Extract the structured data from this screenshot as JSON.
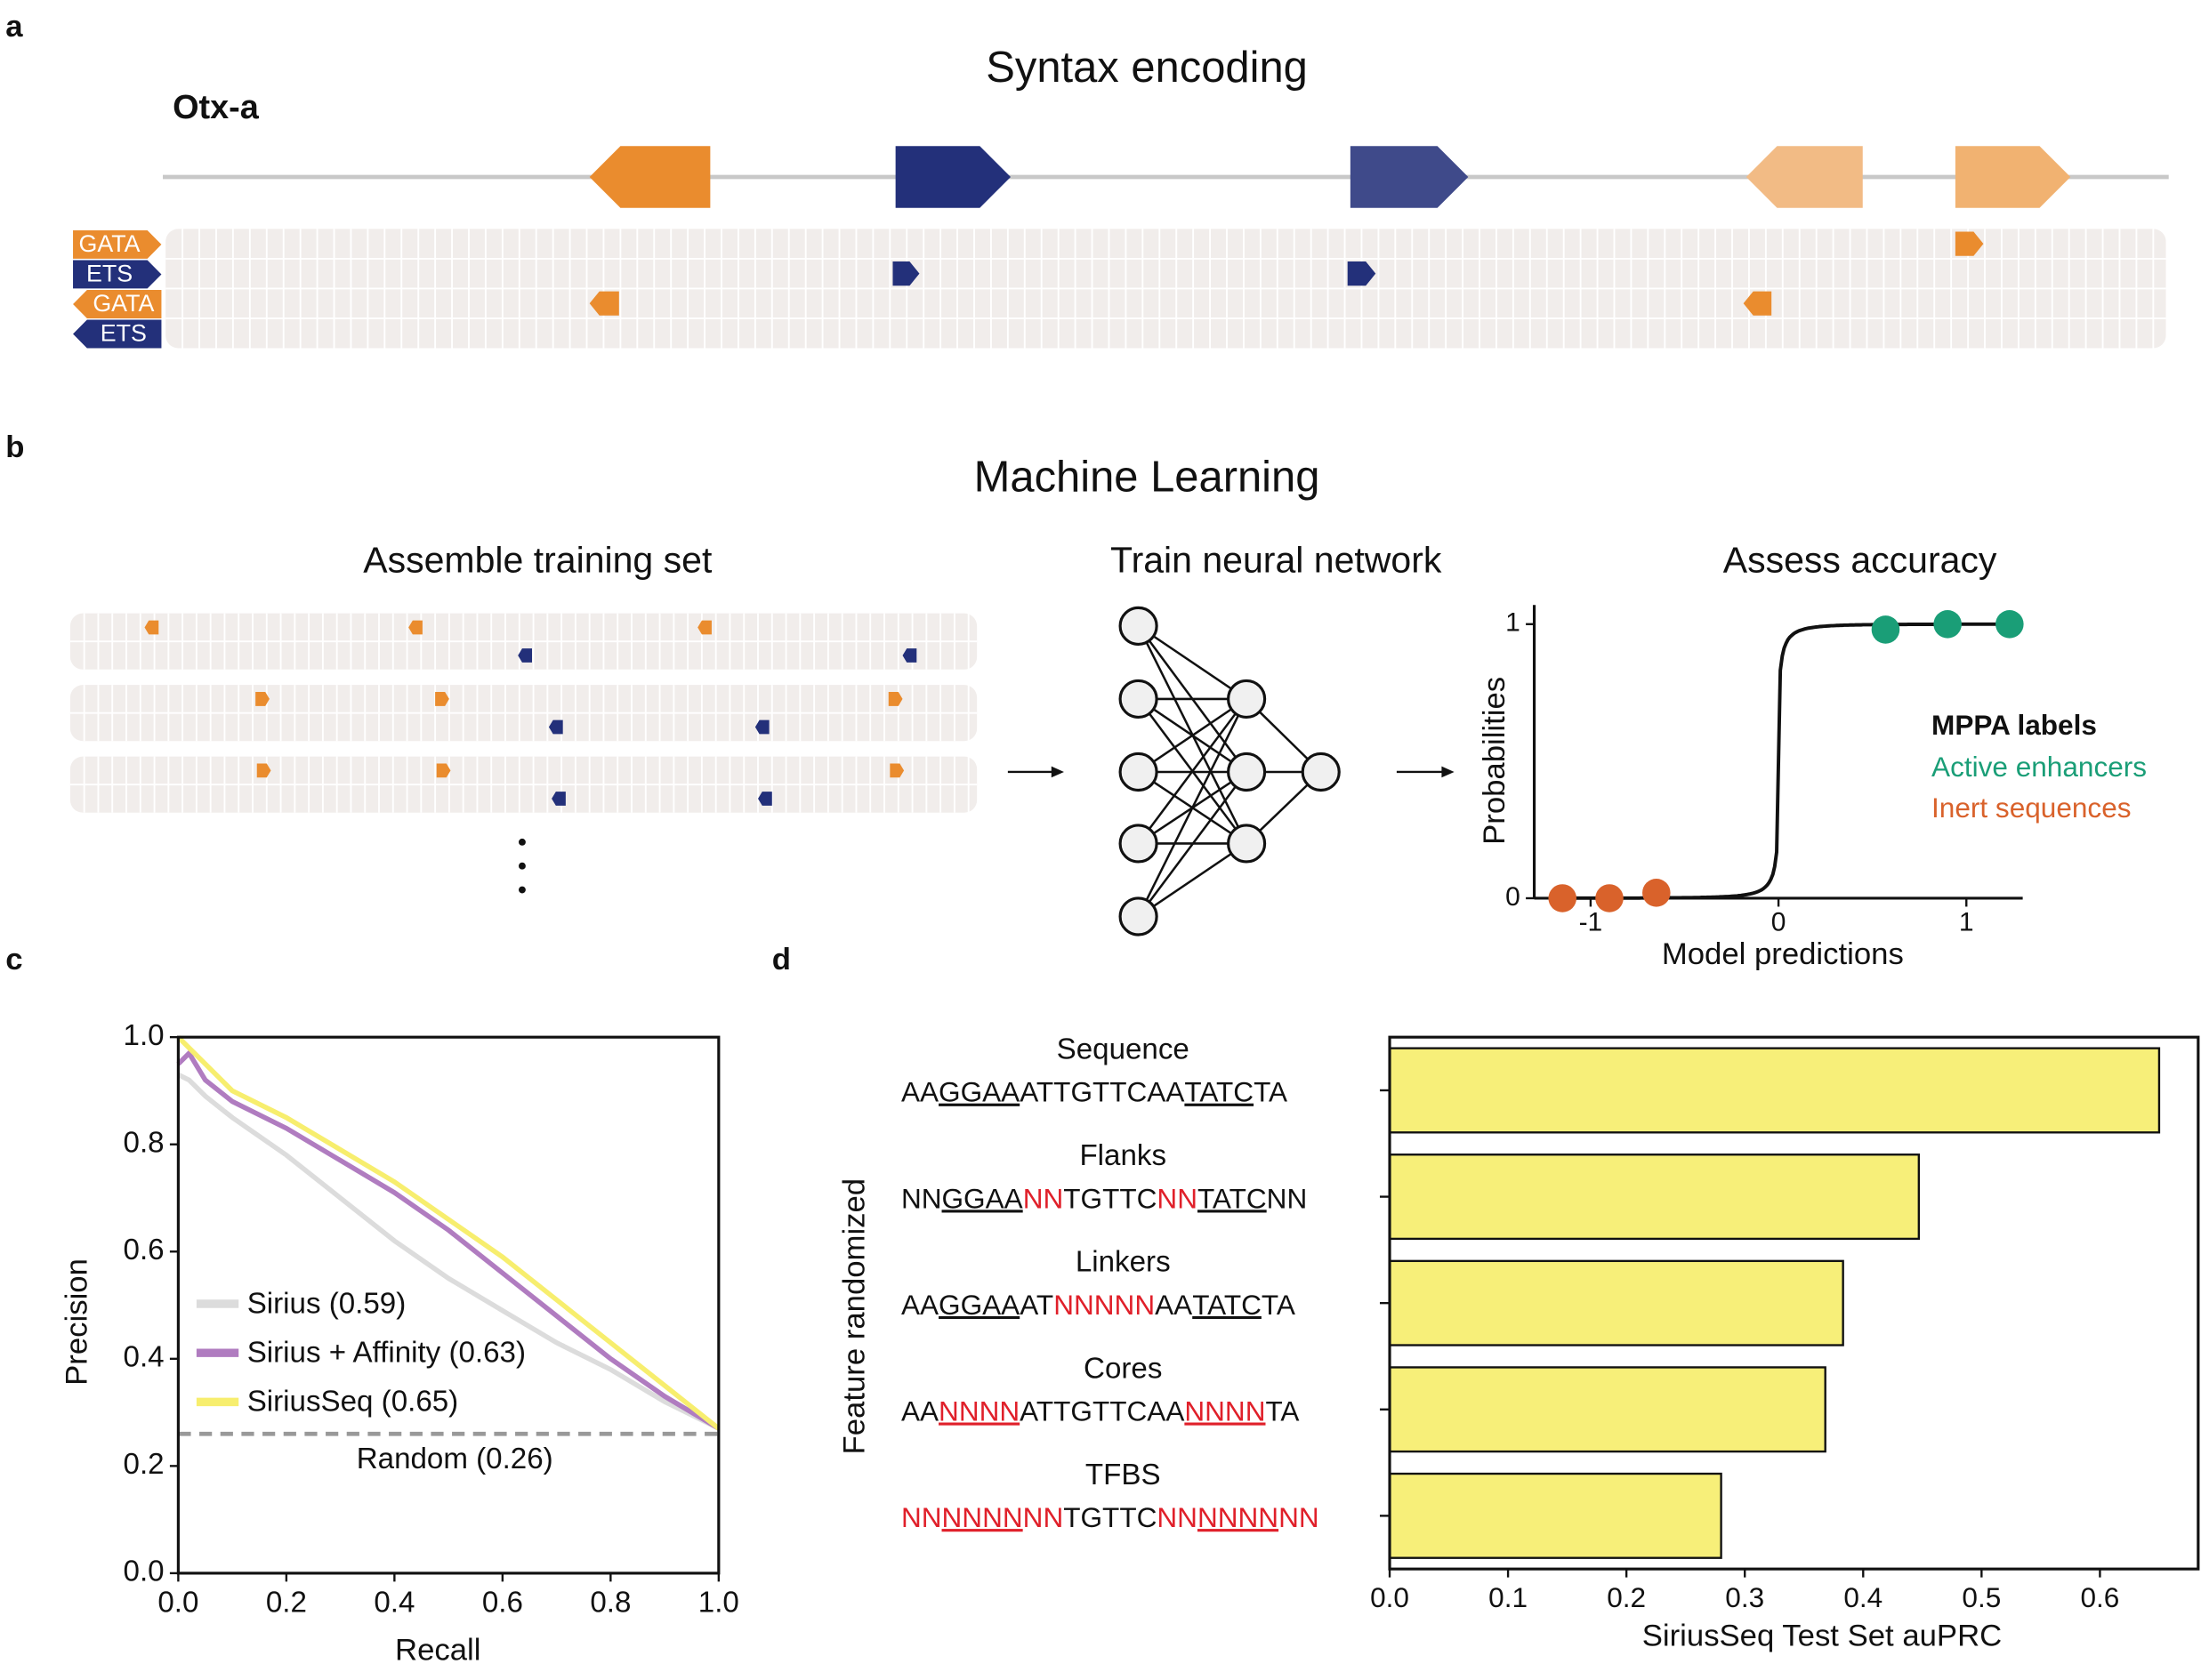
{
  "panel_labels": [
    "a",
    "b",
    "c",
    "d"
  ],
  "panel_a": {
    "title": "Syntax encoding",
    "enhancer": "Otx-a",
    "rows": [
      "GATA",
      "ETS",
      "GATA",
      "ETS"
    ]
  },
  "panel_b": {
    "title": "Machine Learning",
    "steps": [
      "Assemble training set",
      "Train neural network",
      "Assess accuracy"
    ]
  },
  "chart_data": [
    {
      "type": "scatter",
      "xlabel": "Model predictions",
      "ylabel": "Probabilities",
      "xlim": [
        -1.3,
        1.3
      ],
      "ylim": [
        0,
        1.07
      ],
      "xticks": [
        -1,
        0,
        1
      ],
      "yticks": [
        0,
        1
      ],
      "legend_title": "MPPA labels",
      "series": [
        {
          "name": "Active enhancers",
          "color": "#1a9e77",
          "x": [
            0.57,
            0.9,
            1.23
          ],
          "values": [
            0.98,
            1,
            1
          ]
        },
        {
          "name": "Inert sequences",
          "color": "#d9622b",
          "x": [
            -1.15,
            -0.9,
            -0.65
          ],
          "values": [
            0,
            0,
            0.02
          ]
        }
      ]
    },
    {
      "type": "line",
      "xlabel": "Recall",
      "ylabel": "Precision",
      "x": [
        0,
        0.02,
        0.05,
        0.1,
        0.2,
        0.3,
        0.4,
        0.5,
        0.6,
        0.7,
        0.8,
        0.9,
        1.0
      ],
      "xlim": [
        0,
        1
      ],
      "ylim": [
        0,
        1
      ],
      "xticks": [
        {
          "value": 0,
          "label": "0.0"
        },
        0.2,
        0.4,
        0.6,
        0.8,
        {
          "value": 1,
          "label": "1.0"
        }
      ],
      "yticks": [
        {
          "value": 0,
          "label": "0.0"
        },
        0.2,
        0.4,
        0.6,
        0.8,
        {
          "value": 1,
          "label": "1.0"
        }
      ],
      "series": [
        {
          "name": "Sirius (0.59)",
          "color": "#dcdcdc",
          "values": [
            0.93,
            0.92,
            0.89,
            0.85,
            0.78,
            0.7,
            0.62,
            0.55,
            0.49,
            0.43,
            0.38,
            0.32,
            0.27
          ]
        },
        {
          "name": "Sirius + Affinity (0.63)",
          "color": "#b07cc0",
          "values": [
            0.95,
            0.97,
            0.92,
            0.88,
            0.83,
            0.77,
            0.71,
            0.64,
            0.56,
            0.48,
            0.4,
            0.33,
            0.27
          ]
        },
        {
          "name": "SiriusSeq (0.65)",
          "color": "#f7ee6e",
          "values": [
            1.0,
            0.98,
            0.95,
            0.9,
            0.85,
            0.79,
            0.73,
            0.66,
            0.59,
            0.51,
            0.43,
            0.35,
            0.27
          ]
        }
      ],
      "reference": {
        "name": "Random (0.26)",
        "value": 0.26,
        "color": "#999999"
      }
    },
    {
      "type": "bar",
      "orientation": "horizontal",
      "xlabel": "SiriusSeq Test Set auPRC",
      "ylabel": "Feature randomized",
      "categories": [
        "Sequence",
        "Flanks",
        "Linkers",
        "Cores",
        "TFBS"
      ],
      "sequences": [
        [
          {
            "text": "AA"
          },
          {
            "text": "GGAA",
            "underline": true
          },
          {
            "text": "ATTGTTCAA"
          },
          {
            "text": "TATC",
            "underline": true
          },
          {
            "text": "TA"
          }
        ],
        [
          {
            "text": "NN"
          },
          {
            "text": "GGAA",
            "underline": true
          },
          {
            "text": "NN",
            "red": true
          },
          {
            "text": "TGTTC"
          },
          {
            "text": "NN",
            "red": true
          },
          {
            "text": "TATC",
            "underline": true
          },
          {
            "text": "NN"
          }
        ],
        [
          {
            "text": "AA"
          },
          {
            "text": "GGAA",
            "underline": true
          },
          {
            "text": "AT"
          },
          {
            "text": "NNNNN",
            "red": true
          },
          {
            "text": "AA"
          },
          {
            "text": "TATC",
            "underline": true
          },
          {
            "text": "TA"
          }
        ],
        [
          {
            "text": "AA"
          },
          {
            "text": "NNNN",
            "red": true,
            "underline": true
          },
          {
            "text": "ATTGTTCAA"
          },
          {
            "text": "NNNN",
            "red": true,
            "underline": true
          },
          {
            "text": "TA"
          }
        ],
        [
          {
            "text": "NN",
            "red": true
          },
          {
            "text": "NNNN",
            "red": true,
            "underline": true
          },
          {
            "text": "NN",
            "red": true
          },
          {
            "text": "TGTTC"
          },
          {
            "text": "NN",
            "red": true
          },
          {
            "text": "NNNN",
            "red": true,
            "underline": true
          },
          {
            "text": "NN",
            "red": true
          }
        ]
      ],
      "values": [
        0.65,
        0.447,
        0.383,
        0.368,
        0.28
      ],
      "color": "#f7ef79",
      "xlim": [
        0,
        0.683
      ],
      "xticks": [
        {
          "value": 0,
          "label": "0.0"
        },
        0.1,
        0.2,
        0.3,
        0.4,
        0.5,
        0.6
      ]
    }
  ]
}
